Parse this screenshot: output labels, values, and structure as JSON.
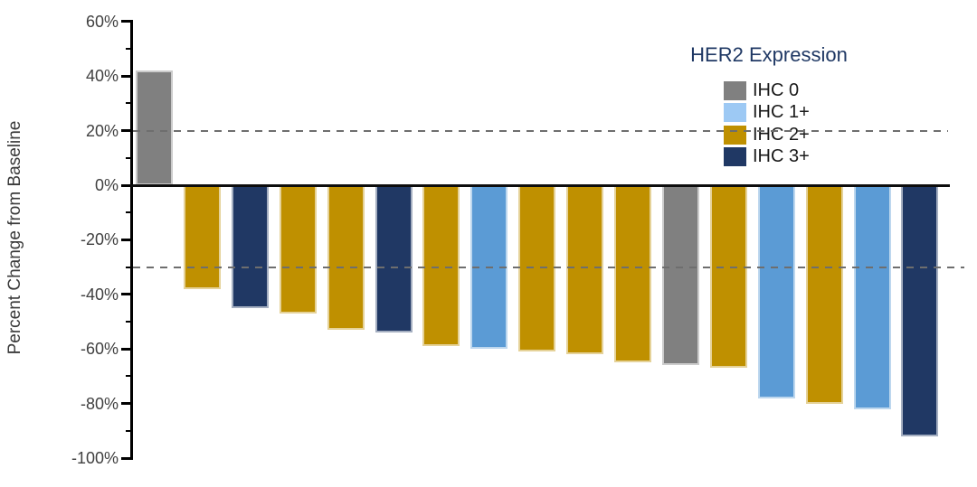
{
  "chart_data": {
    "type": "bar",
    "subtype": "waterfall",
    "title": "",
    "xlabel": "",
    "ylabel": "Percent Change from Baseline",
    "ylim": [
      -100,
      60
    ],
    "grid": "off",
    "yticks": [
      {
        "value": 60,
        "label": "60%"
      },
      {
        "value": 40,
        "label": "40%"
      },
      {
        "value": 20,
        "label": "20%"
      },
      {
        "value": 0,
        "label": "0%"
      },
      {
        "value": -20,
        "label": "-20%"
      },
      {
        "value": -40,
        "label": "-40%"
      },
      {
        "value": -60,
        "label": "-60%"
      },
      {
        "value": -80,
        "label": "-80%"
      },
      {
        "value": -100,
        "label": "-100%"
      }
    ],
    "minor_ticks": [
      50,
      30,
      10,
      -10,
      -30,
      -50,
      -70,
      -90
    ],
    "reference_lines": [
      {
        "value": 20,
        "style": "dashed"
      },
      {
        "value": -30,
        "style": "dashed"
      }
    ],
    "legend": {
      "title": "HER2 Expression",
      "position": "top-right"
    },
    "groups": [
      {
        "label": "IHC 0",
        "bar_color": "#808080",
        "swatch_color": "#808080"
      },
      {
        "label": "IHC 1+",
        "bar_color": "#5B9BD5",
        "swatch_color": "#9DC9F4"
      },
      {
        "label": "IHC 2+",
        "bar_color": "#BF9000",
        "swatch_color": "#BF9000"
      },
      {
        "label": "IHC 3+",
        "bar_color": "#203864",
        "swatch_color": "#203864"
      }
    ],
    "bars": [
      {
        "group": "IHC 0",
        "value": 42
      },
      {
        "group": "IHC 2+",
        "value": -38
      },
      {
        "group": "IHC 3+",
        "value": -45
      },
      {
        "group": "IHC 2+",
        "value": -47
      },
      {
        "group": "IHC 2+",
        "value": -53
      },
      {
        "group": "IHC 3+",
        "value": -54
      },
      {
        "group": "IHC 2+",
        "value": -59
      },
      {
        "group": "IHC 1+",
        "value": -60
      },
      {
        "group": "IHC 2+",
        "value": -61
      },
      {
        "group": "IHC 2+",
        "value": -62
      },
      {
        "group": "IHC 2+",
        "value": -65
      },
      {
        "group": "IHC 0",
        "value": -66
      },
      {
        "group": "IHC 2+",
        "value": -67
      },
      {
        "group": "IHC 1+",
        "value": -78
      },
      {
        "group": "IHC 2+",
        "value": -80
      },
      {
        "group": "IHC 1+",
        "value": -82
      },
      {
        "group": "IHC 3+",
        "value": -92
      }
    ],
    "colors": {
      "background": "#FFFFFF",
      "axis": "#000000",
      "tick_label": "#404040",
      "dashed_line": "#6E6E6E",
      "legend_title": "#1F3864",
      "legend_label": "#1A1A1A"
    }
  }
}
